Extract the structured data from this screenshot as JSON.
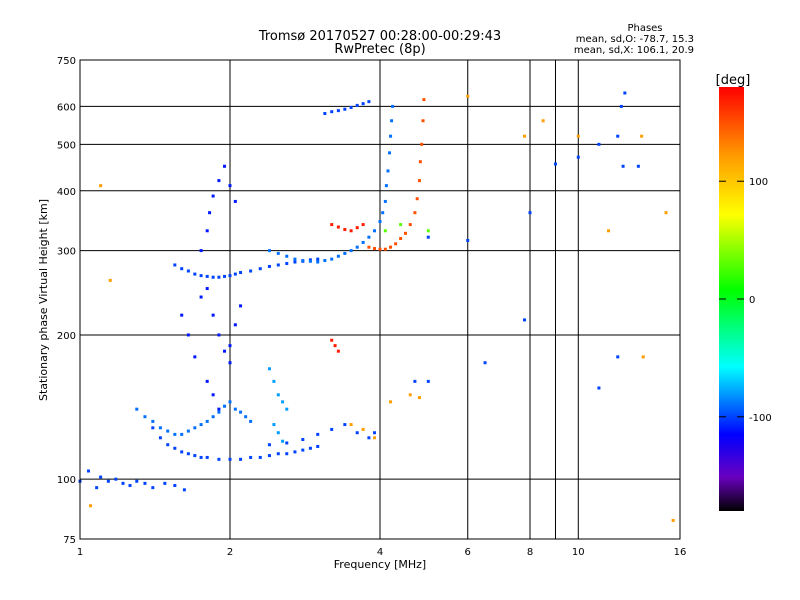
{
  "chart_data": {
    "type": "scatter",
    "title": "Tromsø 20170527 00:28:00-00:29:43",
    "subtitle": "RwPretec (8p)",
    "xlabel": "Frequency [MHz]",
    "ylabel": "Stationary phase Virtual Height [km]",
    "x_scale": "log",
    "y_scale": "log",
    "xlim": [
      1,
      16
    ],
    "ylim": [
      75,
      750
    ],
    "x_ticks": [
      1,
      2,
      4,
      6,
      8,
      10,
      16
    ],
    "x_minor_ticks": [
      9
    ],
    "y_ticks": [
      75,
      100,
      200,
      300,
      400,
      500,
      600,
      750
    ],
    "grid": true,
    "stats": {
      "heading": "Phases",
      "line_o": "mean, sd,O: -78.7, 15.3",
      "line_x": "mean, sd,X: 106.1, 20.9"
    },
    "colorbar": {
      "label": "[deg]",
      "range": [
        -180,
        180
      ],
      "ticks": [
        100,
        0,
        -100
      ],
      "placement": "right"
    },
    "series": [
      {
        "phase": -100,
        "points": [
          [
            1.0,
            99
          ],
          [
            1.04,
            104
          ],
          [
            1.08,
            96
          ],
          [
            1.1,
            101
          ],
          [
            1.14,
            99
          ],
          [
            1.18,
            100
          ],
          [
            1.22,
            98
          ],
          [
            1.26,
            97
          ],
          [
            1.3,
            99
          ],
          [
            1.35,
            98
          ],
          [
            1.4,
            96
          ],
          [
            1.48,
            98
          ],
          [
            1.55,
            97
          ],
          [
            1.62,
            95
          ]
        ]
      },
      {
        "phase": -100,
        "points": [
          [
            1.4,
            128
          ],
          [
            1.45,
            122
          ],
          [
            1.5,
            118
          ],
          [
            1.55,
            116
          ],
          [
            1.6,
            114
          ],
          [
            1.65,
            113
          ],
          [
            1.7,
            112
          ],
          [
            1.75,
            111
          ],
          [
            1.8,
            111
          ],
          [
            1.9,
            110
          ],
          [
            2.0,
            110
          ],
          [
            2.1,
            110
          ],
          [
            2.2,
            111
          ],
          [
            2.3,
            111
          ],
          [
            2.4,
            112
          ],
          [
            2.5,
            113
          ],
          [
            2.6,
            113
          ],
          [
            2.7,
            114
          ],
          [
            2.8,
            115
          ],
          [
            2.9,
            116
          ],
          [
            3.0,
            117
          ]
        ]
      },
      {
        "phase": -90,
        "points": [
          [
            1.3,
            140
          ],
          [
            1.35,
            135
          ],
          [
            1.4,
            132
          ],
          [
            1.45,
            128
          ],
          [
            1.5,
            126
          ],
          [
            1.55,
            124
          ],
          [
            1.6,
            124
          ],
          [
            1.65,
            126
          ],
          [
            1.7,
            128
          ],
          [
            1.75,
            130
          ],
          [
            1.8,
            132
          ],
          [
            1.85,
            135
          ],
          [
            1.9,
            138
          ],
          [
            1.95,
            142
          ],
          [
            2.0,
            145
          ],
          [
            2.05,
            140
          ],
          [
            2.1,
            138
          ],
          [
            2.15,
            135
          ],
          [
            2.2,
            132
          ]
        ]
      },
      {
        "phase": -100,
        "points": [
          [
            1.55,
            280
          ],
          [
            1.6,
            275
          ],
          [
            1.65,
            272
          ],
          [
            1.7,
            268
          ],
          [
            1.75,
            266
          ],
          [
            1.8,
            265
          ],
          [
            1.85,
            264
          ],
          [
            1.9,
            264
          ],
          [
            1.95,
            265
          ],
          [
            2.0,
            266
          ],
          [
            2.05,
            268
          ],
          [
            2.1,
            270
          ],
          [
            2.2,
            272
          ],
          [
            2.3,
            275
          ],
          [
            2.4,
            278
          ],
          [
            2.5,
            280
          ],
          [
            2.6,
            282
          ],
          [
            2.7,
            284
          ],
          [
            2.8,
            285
          ],
          [
            2.9,
            287
          ],
          [
            3.0,
            288
          ]
        ]
      },
      {
        "phase": -110,
        "points": [
          [
            1.8,
            330
          ],
          [
            1.82,
            360
          ],
          [
            1.85,
            390
          ],
          [
            1.9,
            420
          ],
          [
            1.95,
            450
          ],
          [
            2.0,
            410
          ],
          [
            2.05,
            380
          ],
          [
            1.75,
            300
          ],
          [
            1.8,
            250
          ],
          [
            1.85,
            220
          ],
          [
            1.9,
            200
          ],
          [
            1.95,
            185
          ],
          [
            2.0,
            175
          ],
          [
            1.8,
            160
          ],
          [
            1.85,
            150
          ],
          [
            1.9,
            140
          ],
          [
            2.0,
            190
          ],
          [
            2.05,
            210
          ],
          [
            2.1,
            230
          ],
          [
            1.7,
            180
          ],
          [
            1.65,
            200
          ],
          [
            1.6,
            220
          ],
          [
            1.75,
            240
          ]
        ]
      },
      {
        "phase": -90,
        "points": [
          [
            2.4,
            300
          ],
          [
            2.5,
            296
          ],
          [
            2.6,
            292
          ],
          [
            2.7,
            288
          ],
          [
            2.8,
            286
          ],
          [
            2.9,
            285
          ],
          [
            3.0,
            284
          ],
          [
            3.1,
            286
          ],
          [
            3.2,
            288
          ],
          [
            3.3,
            292
          ],
          [
            3.4,
            296
          ],
          [
            3.5,
            300
          ],
          [
            3.6,
            305
          ],
          [
            3.7,
            312
          ],
          [
            3.8,
            320
          ],
          [
            3.9,
            330
          ],
          [
            4.0,
            345
          ],
          [
            4.05,
            360
          ],
          [
            4.1,
            380
          ],
          [
            4.12,
            410
          ],
          [
            4.15,
            440
          ],
          [
            4.18,
            480
          ],
          [
            4.2,
            520
          ],
          [
            4.22,
            560
          ],
          [
            4.24,
            600
          ]
        ]
      },
      {
        "phase": -100,
        "points": [
          [
            3.1,
            580
          ],
          [
            3.2,
            585
          ],
          [
            3.3,
            588
          ],
          [
            3.4,
            592
          ],
          [
            3.5,
            597
          ],
          [
            3.6,
            603
          ],
          [
            3.7,
            608
          ],
          [
            3.8,
            614
          ]
        ]
      },
      {
        "phase": -80,
        "points": [
          [
            2.4,
            170
          ],
          [
            2.45,
            160
          ],
          [
            2.5,
            150
          ],
          [
            2.55,
            145
          ],
          [
            2.6,
            140
          ],
          [
            2.45,
            130
          ],
          [
            2.5,
            125
          ],
          [
            2.55,
            120
          ]
        ]
      },
      {
        "phase": -100,
        "points": [
          [
            2.4,
            118
          ],
          [
            2.6,
            119
          ],
          [
            2.8,
            121
          ],
          [
            3.0,
            124
          ],
          [
            3.2,
            127
          ],
          [
            3.4,
            130
          ],
          [
            3.6,
            125
          ],
          [
            3.8,
            122
          ],
          [
            3.9,
            125
          ]
        ]
      },
      {
        "phase": 150,
        "points": [
          [
            3.8,
            305
          ],
          [
            3.9,
            303
          ],
          [
            4.0,
            302
          ],
          [
            4.1,
            302
          ],
          [
            4.2,
            305
          ],
          [
            4.3,
            310
          ],
          [
            4.4,
            318
          ],
          [
            4.5,
            326
          ],
          [
            4.6,
            340
          ],
          [
            4.7,
            360
          ],
          [
            4.75,
            385
          ],
          [
            4.8,
            420
          ],
          [
            4.82,
            460
          ],
          [
            4.85,
            500
          ],
          [
            4.88,
            560
          ],
          [
            4.9,
            620
          ]
        ]
      },
      {
        "phase": 170,
        "points": [
          [
            3.2,
            340
          ],
          [
            3.3,
            336
          ],
          [
            3.4,
            332
          ],
          [
            3.5,
            330
          ],
          [
            3.6,
            335
          ],
          [
            3.7,
            340
          ]
        ]
      },
      {
        "phase": 170,
        "points": [
          [
            3.2,
            195
          ],
          [
            3.25,
            190
          ],
          [
            3.3,
            185
          ]
        ]
      },
      {
        "phase": 120,
        "points": [
          [
            3.5,
            130
          ],
          [
            3.7,
            127
          ],
          [
            3.9,
            122
          ],
          [
            4.2,
            145
          ],
          [
            4.6,
            150
          ],
          [
            4.8,
            148
          ]
        ]
      },
      {
        "phase": -100,
        "points": [
          [
            5.0,
            320
          ],
          [
            6.0,
            315
          ],
          [
            7.8,
            215
          ],
          [
            8.0,
            360
          ],
          [
            9.0,
            455
          ],
          [
            10.0,
            470
          ],
          [
            11.0,
            500
          ],
          [
            12.0,
            520
          ],
          [
            12.2,
            600
          ],
          [
            12.4,
            640
          ],
          [
            12.3,
            450
          ],
          [
            13.2,
            450
          ],
          [
            12.0,
            180
          ],
          [
            11.0,
            155
          ],
          [
            6.5,
            175
          ],
          [
            5.0,
            160
          ],
          [
            4.7,
            160
          ]
        ]
      },
      {
        "phase": 120,
        "points": [
          [
            6.0,
            630
          ],
          [
            7.8,
            520
          ],
          [
            8.5,
            560
          ],
          [
            10.0,
            520
          ],
          [
            11.5,
            330
          ],
          [
            13.4,
            520
          ],
          [
            13.5,
            180
          ],
          [
            15.0,
            360
          ],
          [
            15.5,
            82
          ],
          [
            1.1,
            410
          ],
          [
            1.05,
            88
          ],
          [
            1.15,
            260
          ]
        ]
      },
      {
        "phase": 30,
        "points": [
          [
            4.1,
            330
          ],
          [
            4.4,
            340
          ],
          [
            5.0,
            330
          ]
        ]
      }
    ]
  }
}
